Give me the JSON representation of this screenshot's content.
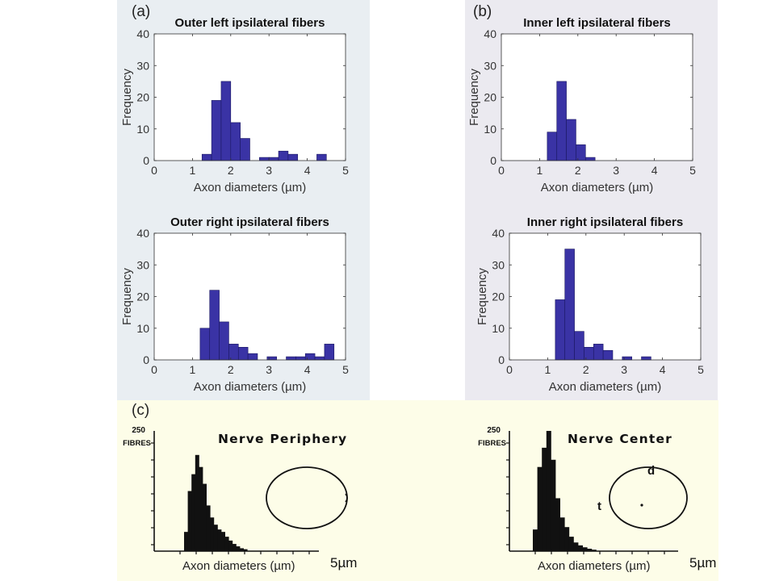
{
  "panel_labels": {
    "a": "(a)",
    "b": "(b)",
    "c": "(c)"
  },
  "colors": {
    "bar": "#3a33a5",
    "bar_edge": "#1a1760",
    "panel_a_bg": "#e9eef2",
    "panel_b_bg": "#ebeaf0",
    "panel_c_bg": "#fdfde8",
    "ink": "#111111"
  },
  "chart_data": [
    {
      "id": "outer-left",
      "type": "bar",
      "title": "Outer left ipsilateral fibers",
      "xlabel": "Axon diameters (µm)",
      "ylabel": "Frequency",
      "xlim": [
        0,
        5
      ],
      "ylim": [
        0,
        40
      ],
      "xticks": [
        0,
        1,
        2,
        3,
        4,
        5
      ],
      "yticks": [
        0,
        10,
        20,
        30,
        40
      ],
      "bin_width": 0.25,
      "bin_edges_start": [
        1.25,
        1.5,
        1.75,
        2.0,
        2.25,
        2.75,
        3.0,
        3.25,
        3.5,
        4.25
      ],
      "values": [
        2,
        19,
        25,
        12,
        7,
        1,
        1,
        3,
        2,
        2
      ]
    },
    {
      "id": "inner-left",
      "type": "bar",
      "title": "Inner left ipsilateral fibers",
      "xlabel": "Axon diameters (µm)",
      "ylabel": "Frequency",
      "xlim": [
        0,
        5
      ],
      "ylim": [
        0,
        40
      ],
      "xticks": [
        0,
        1,
        2,
        3,
        4,
        5
      ],
      "yticks": [
        0,
        10,
        20,
        30,
        40
      ],
      "bin_width": 0.25,
      "bin_edges_start": [
        1.2,
        1.45,
        1.7,
        1.95,
        2.2
      ],
      "values": [
        9,
        25,
        13,
        5,
        1
      ]
    },
    {
      "id": "outer-right",
      "type": "bar",
      "title": "Outer right ipsilateral fibers",
      "xlabel": "Axon diameters (µm)",
      "ylabel": "Frequency",
      "xlim": [
        0,
        5
      ],
      "ylim": [
        0,
        40
      ],
      "xticks": [
        0,
        1,
        2,
        3,
        4,
        5
      ],
      "yticks": [
        0,
        10,
        20,
        30,
        40
      ],
      "bin_width": 0.25,
      "bin_edges_start": [
        1.2,
        1.45,
        1.7,
        1.95,
        2.2,
        2.45,
        2.95,
        3.45,
        3.7,
        3.95,
        4.2,
        4.45
      ],
      "values": [
        10,
        22,
        12,
        5,
        4,
        2,
        1,
        1,
        1,
        2,
        1,
        5
      ]
    },
    {
      "id": "inner-right",
      "type": "bar",
      "title": "Inner right ipsilateral fibers",
      "xlabel": "Axon diameters (µm)",
      "ylabel": "Frequency",
      "xlim": [
        0,
        5
      ],
      "ylim": [
        0,
        40
      ],
      "xticks": [
        0,
        1,
        2,
        3,
        4,
        5
      ],
      "yticks": [
        0,
        10,
        20,
        30,
        40
      ],
      "bin_width": 0.25,
      "bin_edges_start": [
        1.2,
        1.45,
        1.7,
        1.95,
        2.2,
        2.45,
        2.95,
        3.45
      ],
      "values": [
        19,
        35,
        9,
        4,
        5,
        3,
        1,
        1
      ]
    },
    {
      "id": "nerve-periphery",
      "type": "bar",
      "title": "Nerve Periphery",
      "ylabel": "FIBRES",
      "ytick_label": "250",
      "xlabel": "Axon diameters (µm)",
      "x_end_label": "5µm",
      "ylim": [
        0,
        250
      ],
      "values": [
        40,
        125,
        160,
        200,
        175,
        140,
        95,
        70,
        55,
        45,
        40,
        30,
        22,
        15,
        10,
        6,
        4
      ]
    },
    {
      "id": "nerve-center",
      "type": "bar",
      "title": "Nerve Center",
      "ylabel": "FIBRES",
      "ytick_label": "250",
      "xlabel": "Axon diameters (µm)",
      "x_end_label": "5µm",
      "ylim": [
        0,
        250
      ],
      "values": [
        45,
        175,
        215,
        250,
        190,
        110,
        70,
        50,
        30,
        18,
        12,
        8,
        5,
        3
      ],
      "annotations": [
        "d",
        "t"
      ]
    }
  ]
}
